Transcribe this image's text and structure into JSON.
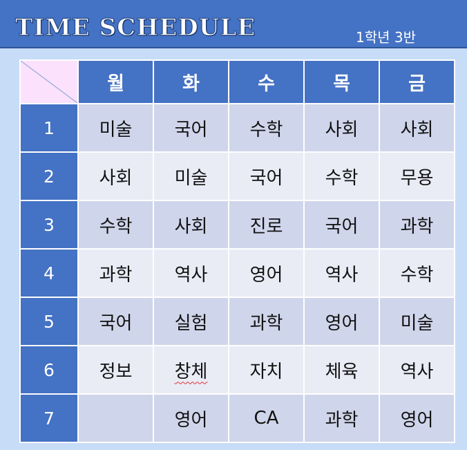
{
  "header": {
    "title": "TIME SCHEDULE",
    "class_label": "1학년 3반"
  },
  "days": [
    "월",
    "화",
    "수",
    "목",
    "금"
  ],
  "periods": [
    "1",
    "2",
    "3",
    "4",
    "5",
    "6",
    "7"
  ],
  "schedule": [
    [
      "미술",
      "국어",
      "수학",
      "사회",
      "사회"
    ],
    [
      "사회",
      "미술",
      "국어",
      "수학",
      "무용"
    ],
    [
      "수학",
      "사회",
      "진로",
      "국어",
      "과학"
    ],
    [
      "과학",
      "역사",
      "영어",
      "역사",
      "수학"
    ],
    [
      "국어",
      "실험",
      "과학",
      "영어",
      "미술"
    ],
    [
      "정보",
      "창체",
      "자치",
      "체육",
      "역사"
    ],
    [
      "",
      "영어",
      "CA",
      "과학",
      "영어"
    ]
  ],
  "colors": {
    "header_blue": "#4472c4",
    "odd_row": "#cfd5ea",
    "even_row": "#e9ebf5",
    "corner_pink": "#fbe1fb",
    "page_bg": "#c7dcf7"
  }
}
